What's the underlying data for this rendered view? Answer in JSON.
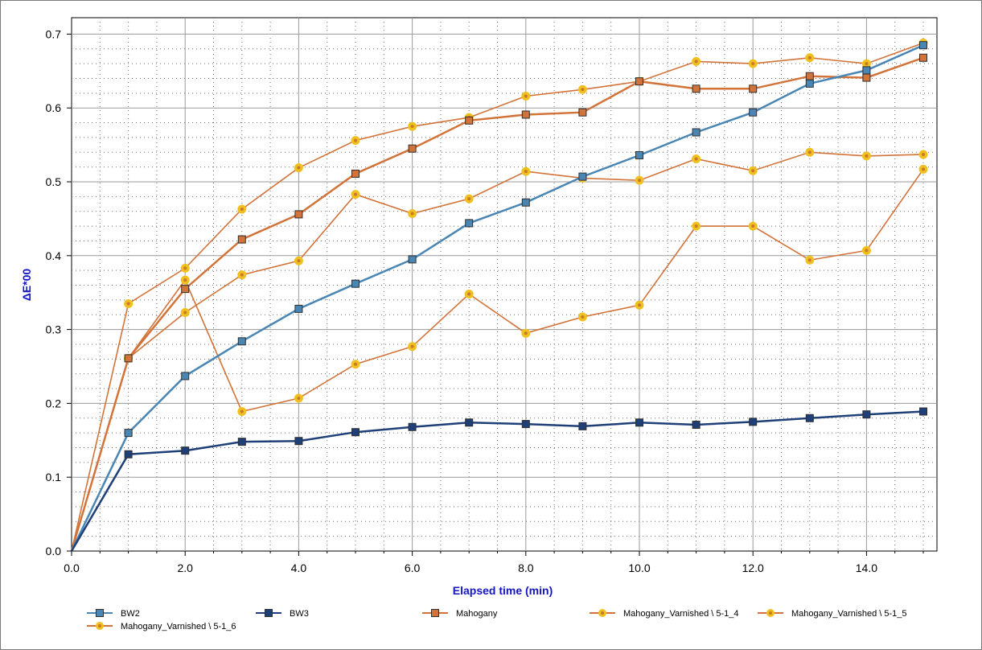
{
  "chart_data": {
    "type": "line",
    "title": "",
    "xlabel": "Elapsed time (min)",
    "ylabel": "ΔE*00",
    "xlim": [
      0,
      15.2
    ],
    "ylim": [
      0,
      0.72
    ],
    "xticks": [
      0,
      2,
      4,
      6,
      8,
      10,
      12,
      14
    ],
    "xtick_labels": [
      "0.0",
      "2.0",
      "4.0",
      "6.0",
      "8.0",
      "10.0",
      "12.0",
      "14.0"
    ],
    "yticks": [
      0,
      0.1,
      0.2,
      0.3,
      0.4,
      0.5,
      0.6,
      0.7
    ],
    "ytick_labels": [
      "0.0",
      "0.1",
      "0.2",
      "0.3",
      "0.4",
      "0.5",
      "0.6",
      "0.7"
    ],
    "grid": true,
    "legend_position": "bottom",
    "x": [
      0,
      1,
      2,
      3,
      4,
      5,
      6,
      7,
      8,
      9,
      10,
      11,
      12,
      13,
      14,
      15
    ],
    "series": [
      {
        "name": "BW2",
        "color": "#4a86b4",
        "marker": "square",
        "values": [
          0,
          0.16,
          0.237,
          0.284,
          0.328,
          0.362,
          0.395,
          0.444,
          0.472,
          0.507,
          0.536,
          0.567,
          0.594,
          0.633,
          0.651,
          0.685
        ]
      },
      {
        "name": "BW3",
        "color": "#1f3f78",
        "marker": "square",
        "values": [
          0,
          0.131,
          0.136,
          0.148,
          0.149,
          0.161,
          0.168,
          0.174,
          0.172,
          0.169,
          0.174,
          0.171,
          0.175,
          0.18,
          0.185,
          0.189
        ]
      },
      {
        "name": "Mahogany",
        "color": "#d2733a",
        "marker": "square",
        "values": [
          0,
          0.261,
          0.355,
          0.422,
          0.456,
          0.511,
          0.545,
          0.583,
          0.591,
          0.594,
          0.636,
          0.626,
          0.626,
          0.643,
          0.641,
          0.668
        ]
      },
      {
        "name": "Mahogany_Varnished \\ 5-1_4",
        "color": "#d2733a",
        "marker": "circle",
        "values": [
          0,
          0.335,
          0.383,
          0.463,
          0.519,
          0.556,
          0.575,
          0.587,
          0.616,
          0.625,
          0.636,
          0.663,
          0.66,
          0.668,
          0.66,
          0.688
        ]
      },
      {
        "name": "Mahogany_Varnished \\ 5-1_5",
        "color": "#d2733a",
        "marker": "circle",
        "values": [
          0,
          0.261,
          0.323,
          0.374,
          0.393,
          0.483,
          0.457,
          0.477,
          0.514,
          0.505,
          0.502,
          0.531,
          0.515,
          0.54,
          0.535,
          0.537
        ]
      },
      {
        "name": "Mahogany_Varnished \\ 5-1_6",
        "color": "#d2733a",
        "marker": "circle",
        "values": [
          0,
          0.261,
          0.367,
          0.189,
          0.207,
          0.253,
          0.277,
          0.348,
          0.295,
          0.317,
          0.333,
          0.44,
          0.44,
          0.394,
          0.407,
          0.517
        ]
      }
    ]
  }
}
